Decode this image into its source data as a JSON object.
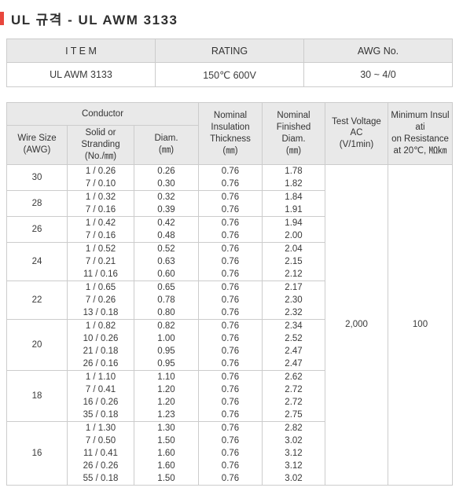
{
  "title": "UL 규격 - UL AWM 3133",
  "colors": {
    "accent_red": "#e8473d",
    "header_bg": "#e9e9e9",
    "border": "#cccccc"
  },
  "summary_table": {
    "headers": {
      "item": "I T E M",
      "rating": "RATING",
      "awg_no": "AWG No."
    },
    "values": {
      "item": "UL AWM 3133",
      "rating": "150℃  600V",
      "awg_no": "30 ~ 4/0"
    }
  },
  "spec_table": {
    "header": {
      "conductor": "Conductor",
      "wire_size": "Wire Size\n(AWG)",
      "stranding": "Solid or Stranding\n(No./㎜)",
      "diam": "Diam.\n(㎜)",
      "insulation_thickness": "Nominal\nInsulation\nThickness\n(㎜)",
      "finished_diam": "Nominal\nFinished\nDiam.\n(㎜)",
      "test_voltage": "Test Voltage\nAC\n(V/1min)",
      "min_resistance": "Minimum Insulati\non Resistance\nat 20℃, ㏁㎞"
    },
    "groups": [
      {
        "awg": "30",
        "rows": [
          [
            "1 / 0.26",
            "0.26",
            "0.76",
            "1.78"
          ],
          [
            "7 / 0.10",
            "0.30",
            "0.76",
            "1.82"
          ]
        ]
      },
      {
        "awg": "28",
        "rows": [
          [
            "1 / 0.32",
            "0.32",
            "0.76",
            "1.84"
          ],
          [
            "7 / 0.16",
            "0.39",
            "0.76",
            "1.91"
          ]
        ]
      },
      {
        "awg": "26",
        "rows": [
          [
            "1 / 0.42",
            "0.42",
            "0.76",
            "1.94"
          ],
          [
            "7 / 0.16",
            "0.48",
            "0.76",
            "2.00"
          ]
        ]
      },
      {
        "awg": "24",
        "rows": [
          [
            "1 / 0.52",
            "0.52",
            "0.76",
            "2.04"
          ],
          [
            "7 / 0.21",
            "0.63",
            "0.76",
            "2.15"
          ],
          [
            "11 / 0.16",
            "0.60",
            "0.76",
            "2.12"
          ]
        ]
      },
      {
        "awg": "22",
        "rows": [
          [
            "1 / 0.65",
            "0.65",
            "0.76",
            "2.17"
          ],
          [
            "7 / 0.26",
            "0.78",
            "0.76",
            "2.30"
          ],
          [
            "13 / 0.18",
            "0.80",
            "0.76",
            "2.32"
          ]
        ]
      },
      {
        "awg": "20",
        "rows": [
          [
            "1 / 0.82",
            "0.82",
            "0.76",
            "2.34"
          ],
          [
            "10 / 0.26",
            "1.00",
            "0.76",
            "2.52"
          ],
          [
            "21 / 0.18",
            "0.95",
            "0.76",
            "2.47"
          ],
          [
            "26 / 0.16",
            "0.95",
            "0.76",
            "2.47"
          ]
        ]
      },
      {
        "awg": "18",
        "rows": [
          [
            "1 / 1.10",
            "1.10",
            "0.76",
            "2.62"
          ],
          [
            "7 / 0.41",
            "1.20",
            "0.76",
            "2.72"
          ],
          [
            "16 / 0.26",
            "1.20",
            "0.76",
            "2.72"
          ],
          [
            "35 / 0.18",
            "1.23",
            "0.76",
            "2.75"
          ]
        ]
      },
      {
        "awg": "16",
        "rows": [
          [
            "1 / 1.30",
            "1.30",
            "0.76",
            "2.82"
          ],
          [
            "7 / 0.50",
            "1.50",
            "0.76",
            "3.02"
          ],
          [
            "11 / 0.41",
            "1.60",
            "0.76",
            "3.12"
          ],
          [
            "26 / 0.26",
            "1.60",
            "0.76",
            "3.12"
          ],
          [
            "55 / 0.18",
            "1.50",
            "0.76",
            "3.02"
          ]
        ]
      }
    ],
    "test_voltage_value": "2,000",
    "min_resistance_value": "100"
  }
}
